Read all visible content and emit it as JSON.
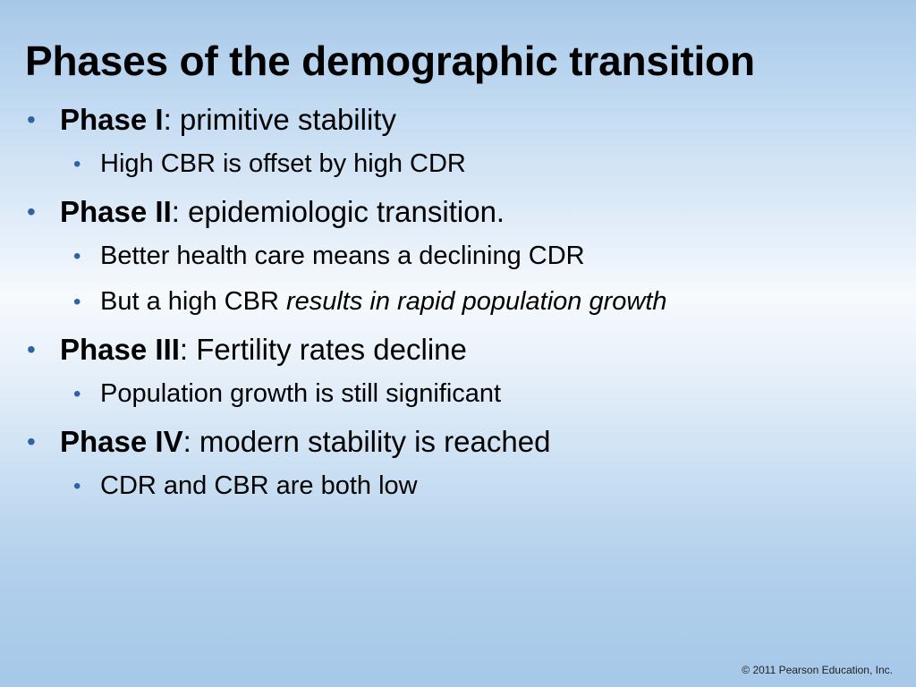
{
  "slide": {
    "title": "Phases of the demographic transition",
    "phases": [
      {
        "label": "Phase I",
        "description": ": primitive stability",
        "points": [
          {
            "text": "High CBR is offset by high CDR",
            "italic": ""
          }
        ]
      },
      {
        "label": "Phase II",
        "description": ": epidemiologic transition.",
        "points": [
          {
            "text": "Better health care means a declining CDR",
            "italic": ""
          },
          {
            "text": "But a high CBR ",
            "italic": "results in rapid population growth"
          }
        ]
      },
      {
        "label": "Phase III",
        "description": ": Fertility rates decline",
        "points": [
          {
            "text": "Population growth is still significant",
            "italic": ""
          }
        ]
      },
      {
        "label": "Phase IV",
        "description": ": modern stability is reached",
        "points": [
          {
            "text": "CDR and CBR are both low",
            "italic": ""
          }
        ]
      }
    ],
    "bullet_glyph": "•",
    "bullet_color": "#2e62a7",
    "copyright": "© 2011 Pearson Education, Inc."
  }
}
